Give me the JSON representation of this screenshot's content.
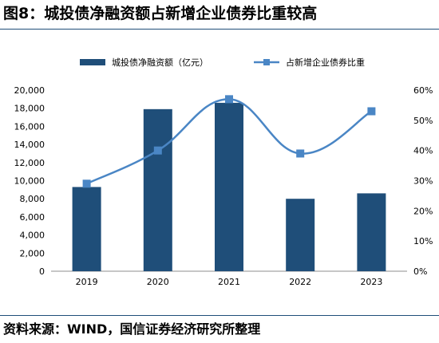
{
  "figure": {
    "title": "图8：城投债净融资额占新增企业债券比重较高",
    "source": "资料来源：WIND，国信证券经济研究所整理"
  },
  "chart_data": {
    "type": "bar",
    "categories": [
      "2019",
      "2020",
      "2021",
      "2022",
      "2023"
    ],
    "series": [
      {
        "name": "城投债净融资额（亿元）",
        "type": "bar",
        "axis": "left",
        "values": [
          9300,
          17900,
          18600,
          8000,
          8600
        ],
        "color": "#1f4e79"
      },
      {
        "name": "占新增企业债券比重",
        "type": "line",
        "axis": "right",
        "values": [
          29,
          40,
          57,
          39,
          53
        ],
        "color": "#4a86c5"
      }
    ],
    "y_left": {
      "min": 0,
      "max": 20000,
      "ticks": [
        "0",
        "2,000",
        "4,000",
        "6,000",
        "8,000",
        "10,000",
        "12,000",
        "14,000",
        "16,000",
        "18,000",
        "20,000"
      ]
    },
    "y_right": {
      "min": 0,
      "max": 60,
      "ticks": [
        "0%",
        "10%",
        "20%",
        "30%",
        "40%",
        "50%",
        "60%"
      ]
    },
    "grid": false,
    "legend": "top"
  }
}
